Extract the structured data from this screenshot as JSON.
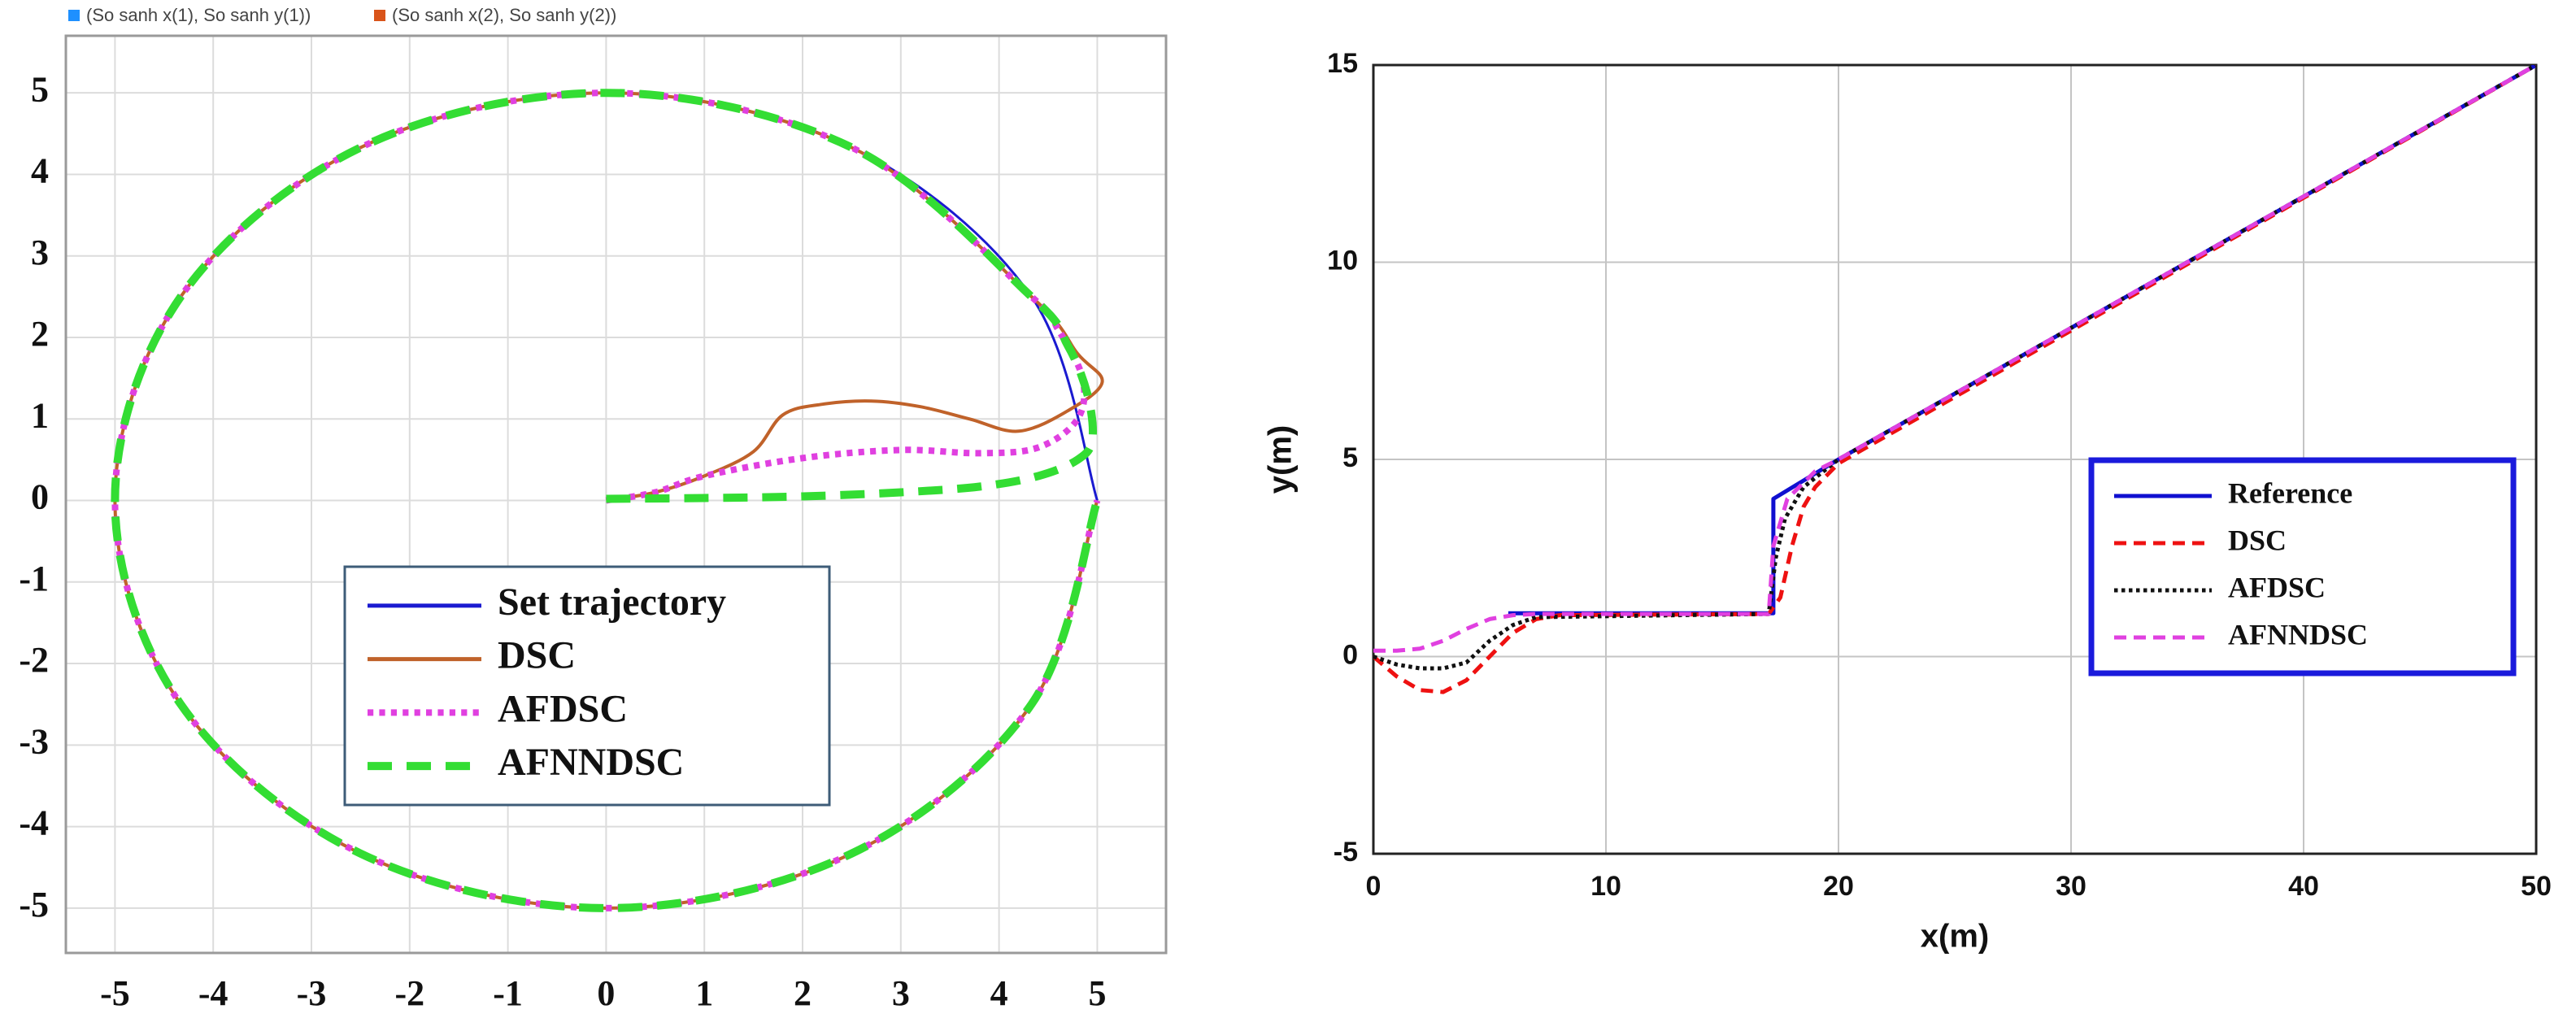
{
  "chart_data": [
    {
      "type": "line",
      "header_legend": [
        {
          "label": "(So sanh x(1), So sanh y(1))",
          "color": "#1e90ff"
        },
        {
          "label": "(So sanh x(2), So sanh y(2))",
          "color": "#d9541a"
        }
      ],
      "xlim": [
        -5.5,
        5.7
      ],
      "ylim": [
        -5.55,
        5.7
      ],
      "xticks": [
        -5,
        -4,
        -3,
        -2,
        -1,
        0,
        1,
        2,
        3,
        4,
        5
      ],
      "yticks": [
        -5,
        -4,
        -3,
        -2,
        -1,
        0,
        1,
        2,
        3,
        4,
        5
      ],
      "grid": true,
      "legend": "lower center",
      "series": [
        {
          "name": "Set trajectory",
          "color": "#1a1ad0",
          "linestyle": "solid",
          "x": [
            5,
            4.33,
            2.5,
            0,
            -2.5,
            -4.33,
            -5,
            -4.33,
            -2.5,
            0,
            2.5,
            4.33,
            5
          ],
          "values": [
            0,
            2.5,
            4.33,
            5,
            4.33,
            2.5,
            0,
            -2.5,
            -4.33,
            -5,
            -4.33,
            -2.5,
            0
          ]
        },
        {
          "name": "DSC",
          "color": "#c0622a",
          "linestyle": "solid",
          "x": [
            0,
            0.5,
            1,
            1.5,
            1.8,
            2.2,
            2.7,
            3.2,
            3.7,
            4.2,
            4.7,
            5.05,
            4.8,
            4.33,
            2.5,
            0,
            -2.5,
            -4.33,
            -5,
            -4.33,
            -2.5,
            0,
            2.5,
            4.33,
            5
          ],
          "values": [
            0,
            0.1,
            0.3,
            0.6,
            1.05,
            1.18,
            1.22,
            1.15,
            1.0,
            0.85,
            1.1,
            1.45,
            1.8,
            2.5,
            4.33,
            5,
            4.33,
            2.5,
            0,
            -2.5,
            -4.33,
            -5,
            -4.33,
            -2.5,
            0
          ]
        },
        {
          "name": "AFDSC",
          "color": "#e040e0",
          "linestyle": "dotted",
          "x": [
            0,
            0.5,
            1,
            2,
            3,
            3.8,
            4.4,
            4.8,
            4.85,
            4.6,
            4.33,
            2.5,
            0,
            -2.5,
            -4.33,
            -5,
            -4.33,
            -2.5,
            0,
            2.5,
            4.33,
            5
          ],
          "values": [
            0,
            0.1,
            0.3,
            0.52,
            0.62,
            0.58,
            0.65,
            1.0,
            1.5,
            2.1,
            2.5,
            4.33,
            5,
            4.33,
            2.5,
            0,
            -2.5,
            -4.33,
            -5,
            -4.33,
            -2.5,
            0
          ]
        },
        {
          "name": "AFNNDSC",
          "color": "#33dd33",
          "linestyle": "dashed",
          "x": [
            0,
            1,
            2,
            3,
            3.8,
            4.4,
            4.8,
            4.95,
            4.9,
            4.7,
            4.33,
            2.5,
            0,
            -2.5,
            -4.33,
            -5,
            -4.33,
            -2.5,
            0,
            2.5,
            4.33,
            5
          ],
          "values": [
            0.02,
            0.03,
            0.05,
            0.1,
            0.17,
            0.3,
            0.5,
            0.75,
            1.3,
            1.9,
            2.5,
            4.33,
            5,
            4.33,
            2.5,
            0,
            -2.5,
            -4.33,
            -5,
            -4.33,
            -2.5,
            0
          ]
        }
      ]
    },
    {
      "type": "line",
      "xlabel": "x(m)",
      "ylabel": "y(m)",
      "xlim": [
        0,
        50
      ],
      "ylim": [
        -5,
        15
      ],
      "xticks": [
        0,
        10,
        20,
        30,
        40,
        50
      ],
      "yticks": [
        -5,
        0,
        5,
        10,
        15
      ],
      "grid": true,
      "legend": "center right",
      "series": [
        {
          "name": "Reference",
          "color": "#1010d0",
          "linestyle": "solid",
          "x": [
            5.8,
            17.2,
            17.2,
            20,
            50
          ],
          "values": [
            1.1,
            1.1,
            4.0,
            5.0,
            15
          ]
        },
        {
          "name": "DSC",
          "color": "#ee1111",
          "linestyle": "dashed",
          "x": [
            0,
            1,
            2,
            3,
            4,
            5,
            6,
            7,
            8,
            17,
            17.5,
            18,
            18.5,
            19,
            20,
            50
          ],
          "values": [
            0,
            -0.5,
            -0.85,
            -0.9,
            -0.6,
            0,
            0.6,
            0.95,
            1.05,
            1.08,
            1.5,
            2.8,
            3.8,
            4.3,
            4.9,
            15
          ]
        },
        {
          "name": "AFDSC",
          "color": "#111111",
          "linestyle": "dotted",
          "x": [
            0,
            1,
            2,
            3,
            4,
            5,
            6,
            7,
            17,
            17.3,
            17.7,
            18.5,
            20,
            50
          ],
          "values": [
            0,
            -0.2,
            -0.3,
            -0.3,
            -0.15,
            0.4,
            0.8,
            1.0,
            1.08,
            2.5,
            3.5,
            4.3,
            5.0,
            15
          ]
        },
        {
          "name": "AFNNDSC",
          "color": "#e040e0",
          "linestyle": "dashed",
          "x": [
            0,
            1,
            2,
            3,
            4,
            5,
            6,
            7,
            17,
            17.2,
            17.8,
            19,
            20,
            50
          ],
          "values": [
            0.15,
            0.15,
            0.2,
            0.4,
            0.7,
            0.95,
            1.05,
            1.08,
            1.08,
            2.8,
            4.0,
            4.7,
            5.0,
            15
          ]
        }
      ]
    }
  ]
}
